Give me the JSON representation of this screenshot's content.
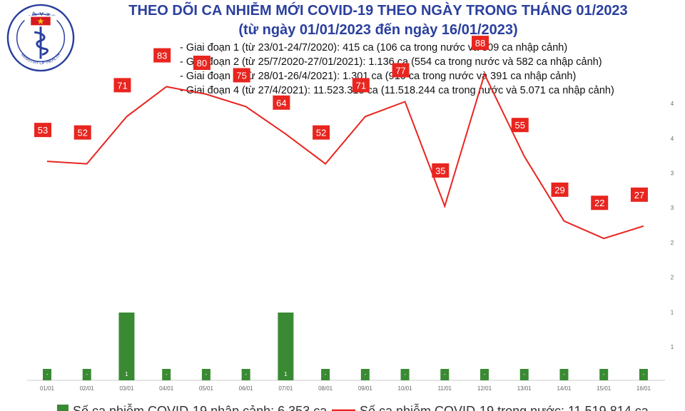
{
  "logo": {
    "top_text": "BỘ Y TẾ",
    "bottom_text": "MINISTRY OF HEALTH",
    "colors": {
      "ring": "#2a3f9e",
      "star": "#f5c518",
      "flag": "#d71920"
    }
  },
  "title_line1": "THEO DÕI CA NHIỄM MỚI COVID-19 THEO NGÀY TRONG THÁNG 01/2023",
  "title_line2": "(từ ngày 01/01/2023 đến ngày 16/01/2023)",
  "phases": [
    "- Giai đoạn 1 (từ 23/01-24/7/2020): 415 ca (106 ca trong nước và 309 ca nhập cảnh)",
    "- Giai đoạn 2 (từ 25/7/2020-27/01/2021): 1.136 ca (554 ca trong nước và 582 ca nhập cảnh)",
    "- Giai đoạn 3 (từ 28/01-26/4/2021): 1.301 ca (910 ca trong nước và 391 ca nhập cảnh)",
    "- Giai đoạn 4 (từ 27/4/2021): 11.523.315 ca (11.518.244 ca trong nước và 5.071 ca nhập cảnh)"
  ],
  "chart_data": {
    "type": "bar+line",
    "categories": [
      "01/01",
      "02/01",
      "03/01",
      "04/01",
      "05/01",
      "06/01",
      "07/01",
      "08/01",
      "09/01",
      "10/01",
      "11/01",
      "12/01",
      "13/01",
      "14/01",
      "15/01",
      "16/01"
    ],
    "bar_labels": [
      "-",
      "-",
      "1",
      "-",
      "-",
      "-",
      "1",
      "-",
      "-",
      "-",
      "-",
      "-",
      "-",
      "-",
      "-",
      "-"
    ],
    "series": [
      {
        "name": "Số ca nhiễm COVID-19 nhập cảnh: 6.353 ca",
        "type": "bar",
        "color": "#3a8a34",
        "values": [
          0,
          0,
          1,
          0,
          0,
          0,
          1,
          0,
          0,
          0,
          0,
          0,
          0,
          0,
          0,
          0
        ]
      },
      {
        "name": "Số ca nhiễm COVID-19 trong nước: 11.519.814 ca",
        "type": "line",
        "color": "#e8251f",
        "values": [
          53,
          52,
          71,
          83,
          80,
          75,
          64,
          52,
          71,
          77,
          35,
          88,
          55,
          29,
          22,
          27
        ]
      }
    ],
    "right_axis_ticks": [
      "1",
      "1",
      "2",
      "2",
      "3",
      "3",
      "4",
      "4"
    ],
    "bar_axis_max": 4,
    "line_axis_range": [
      -35,
      100
    ],
    "grid": false
  },
  "colors": {
    "title": "#2a3f9e",
    "axis_text": "#666666",
    "baseline": "#cccccc",
    "bar_label_text": "#ffffff",
    "label_box": "#e8251f"
  }
}
